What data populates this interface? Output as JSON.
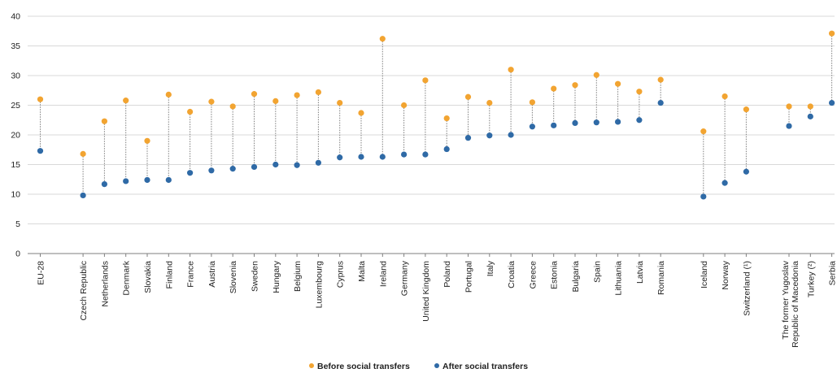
{
  "chart_data": {
    "type": "dot-range",
    "title": "",
    "xlabel": "",
    "ylabel": "",
    "ylim": [
      0,
      40
    ],
    "yticks": [
      0,
      5,
      10,
      15,
      20,
      25,
      30,
      35,
      40
    ],
    "grid": true,
    "legend_position": "bottom-center",
    "categories": [
      "EU-28",
      "",
      "Czech Republic",
      "Netherlands",
      "Denmark",
      "Slovakia",
      "Finland",
      "France",
      "Austria",
      "Slovenia",
      "Sweden",
      "Hungary",
      "Belgium",
      "Luxembourg",
      "Cyprus",
      "Malta",
      "Ireland",
      "Germany",
      "United Kingdom",
      "Poland",
      "Portugal",
      "Italy",
      "Croatia",
      "Greece",
      "Estonia",
      "Bulgaria",
      "Spain",
      "Lithuania",
      "Latvia",
      "Romania",
      "",
      "Iceland",
      "Norway",
      "Switzerland (¹)",
      "",
      "The former Yugoslav Republic of Macedonia",
      "Turkey (²)",
      "Serbia"
    ],
    "series": [
      {
        "name": "Before social transfers",
        "color": "#f2a431",
        "values": [
          26.0,
          null,
          16.8,
          22.3,
          25.8,
          19.0,
          26.8,
          23.9,
          25.6,
          24.8,
          26.9,
          25.7,
          26.7,
          27.2,
          25.4,
          23.7,
          36.2,
          25.0,
          29.2,
          22.8,
          26.4,
          25.4,
          31.0,
          25.5,
          27.8,
          28.4,
          30.1,
          28.6,
          27.3,
          29.3,
          null,
          20.6,
          26.5,
          24.3,
          null,
          24.8,
          24.8,
          37.1
        ]
      },
      {
        "name": "After social transfers",
        "color": "#2f6aa6",
        "values": [
          17.3,
          null,
          9.8,
          11.7,
          12.2,
          12.4,
          12.4,
          13.6,
          14.0,
          14.3,
          14.6,
          15.0,
          14.9,
          15.3,
          16.2,
          16.3,
          16.3,
          16.7,
          16.7,
          17.6,
          19.5,
          19.9,
          20.0,
          21.4,
          21.6,
          22.0,
          22.1,
          22.2,
          22.5,
          25.4,
          null,
          9.6,
          11.9,
          13.8,
          null,
          21.5,
          23.1,
          25.4
        ]
      }
    ],
    "colors": {
      "grid": "#d9d9d9",
      "connector": "#7f7f7f",
      "axis": "#7f7f7f"
    }
  }
}
